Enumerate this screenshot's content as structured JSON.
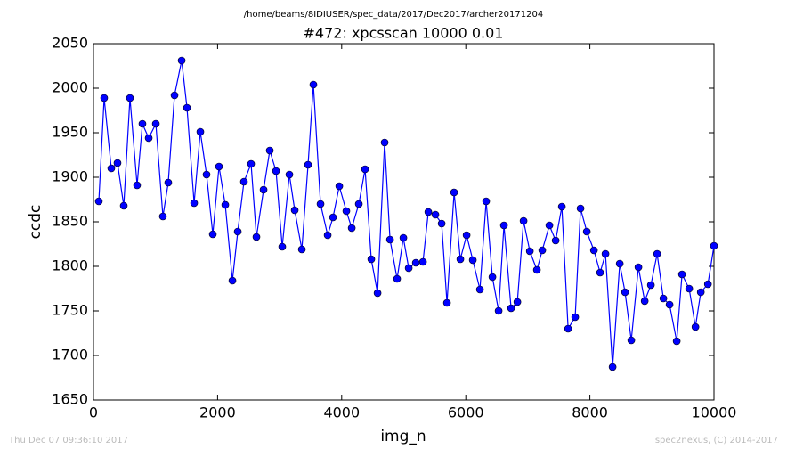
{
  "chart_data": {
    "type": "line",
    "title": "/home/beams/8IDIUSER/spec_data/2017/Dec2017/archer20171204",
    "subtitle": "#472: xpcsscan 10000 0.01",
    "xlabel": "img_n",
    "ylabel": "ccdc",
    "footer_left": "Thu Dec 07 09:36:10 2017",
    "footer_right": "spec2nexus, (C) 2014-2017",
    "color": "#0000ff",
    "marker": true,
    "xlim": [
      0,
      10000
    ],
    "xticks": [
      0,
      2000,
      4000,
      6000,
      8000,
      10000
    ],
    "ylim": [
      1650,
      2050
    ],
    "yticks": [
      1650,
      1700,
      1750,
      1800,
      1850,
      1900,
      1950,
      2000,
      2050
    ],
    "x": [
      86,
      172,
      287,
      387,
      488,
      588,
      703,
      789,
      890,
      1005,
      1119,
      1205,
      1306,
      1421,
      1507,
      1622,
      1722,
      1822,
      1923,
      2023,
      2124,
      2239,
      2325,
      2425,
      2540,
      2626,
      2741,
      2841,
      2942,
      3042,
      3157,
      3243,
      3358,
      3458,
      3544,
      3659,
      3774,
      3860,
      3961,
      4075,
      4162,
      4276,
      4377,
      4477,
      4578,
      4692,
      4779,
      4893,
      4994,
      5080,
      5195,
      5310,
      5396,
      5510,
      5611,
      5697,
      5812,
      5912,
      6013,
      6113,
      6228,
      6328,
      6429,
      6529,
      6615,
      6730,
      6831,
      6931,
      7032,
      7146,
      7232,
      7347,
      7448,
      7548,
      7649,
      7763,
      7849,
      7950,
      8065,
      8165,
      8251,
      8366,
      8481,
      8567,
      8667,
      8782,
      8883,
      8983,
      9084,
      9184,
      9284,
      9399,
      9485,
      9600,
      9701,
      9787,
      9902,
      10000
    ],
    "values": [
      1873,
      1989,
      1910,
      1916,
      1868,
      1989,
      1891,
      1960,
      1944,
      1960,
      1856,
      1894,
      1992,
      2031,
      1978,
      1871,
      1951,
      1903,
      1836,
      1912,
      1869,
      1784,
      1839,
      1895,
      1915,
      1833,
      1886,
      1930,
      1907,
      1822,
      1903,
      1863,
      1819,
      1914,
      2004,
      1870,
      1835,
      1855,
      1890,
      1862,
      1843,
      1870,
      1909,
      1808,
      1770,
      1939,
      1830,
      1786,
      1832,
      1798,
      1804,
      1805,
      1861,
      1858,
      1848,
      1759,
      1883,
      1808,
      1835,
      1807,
      1774,
      1873,
      1788,
      1750,
      1846,
      1753,
      1760,
      1851,
      1817,
      1796,
      1818,
      1846,
      1829,
      1867,
      1730,
      1743,
      1865,
      1839,
      1818,
      1793,
      1814,
      1687,
      1803,
      1771,
      1717,
      1799,
      1761,
      1779,
      1814,
      1764,
      1757,
      1716,
      1791,
      1775,
      1732,
      1771,
      1780,
      1823
    ]
  }
}
